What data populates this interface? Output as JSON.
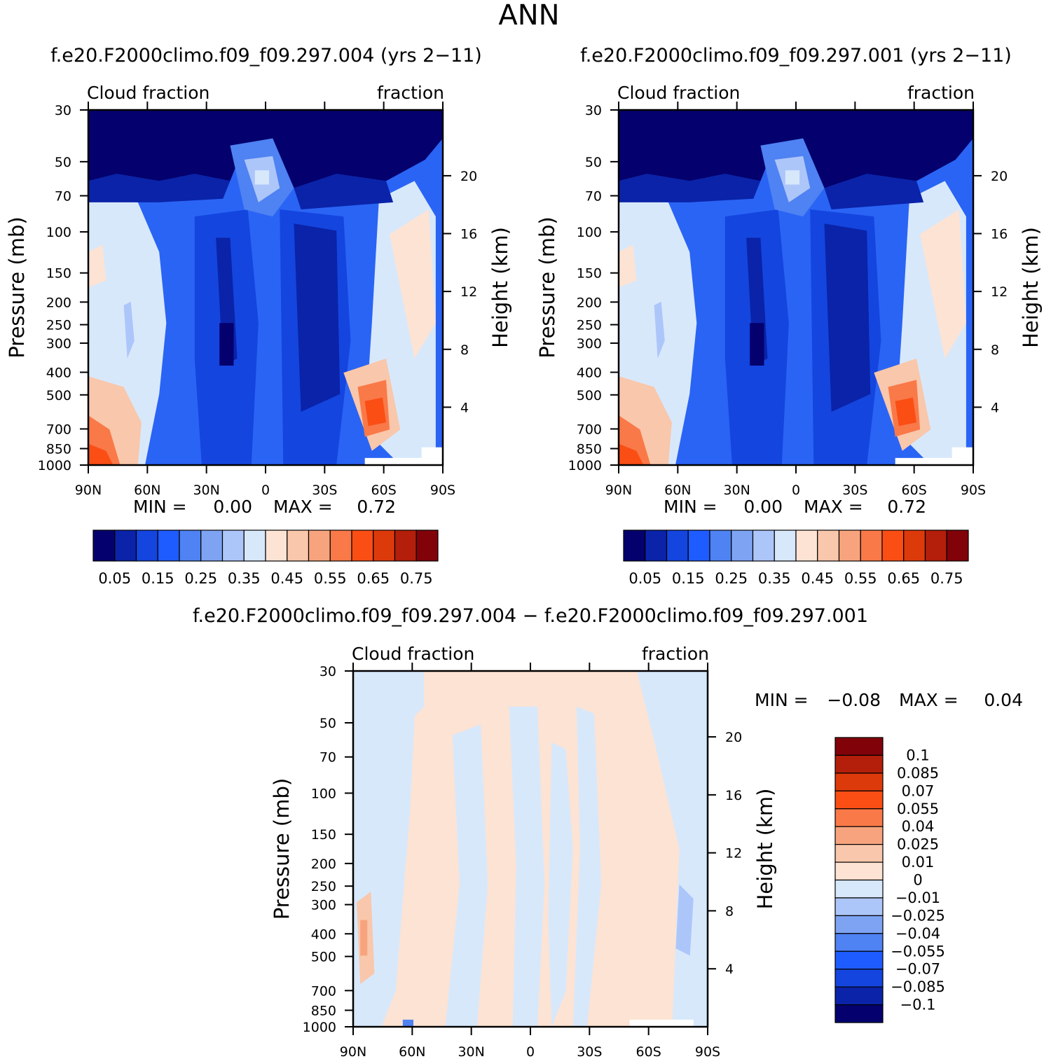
{
  "figure": {
    "season": "ANN",
    "min_label": "MIN  =",
    "max_label": "MAX  ="
  },
  "chart_data": [
    {
      "type": "heatmap",
      "id": "panel1",
      "case_title": "f.e20.F2000climo.f09_f09.297.004 (yrs 2-11)",
      "left_string": "Cloud fraction",
      "right_string": "fraction",
      "ylabel": "Pressure (mb)",
      "ylabel2": "Height (km)",
      "x_ticks": [
        "90N",
        "60N",
        "30N",
        "0",
        "30S",
        "60S",
        "90S"
      ],
      "x_range_lat": [
        90,
        -90
      ],
      "p_ticks": [
        "30",
        "50",
        "70",
        "100",
        "150",
        "200",
        "250",
        "300",
        "400",
        "500",
        "700",
        "850",
        "1000"
      ],
      "p_range": [
        30,
        1000
      ],
      "h_ticks": [
        "20",
        "16",
        "12",
        "8",
        "4"
      ],
      "min": "0.00",
      "max": "0.72",
      "colorbar_colors": [
        "#04006d",
        "#0a23a8",
        "#1445df",
        "#1f5cff",
        "#4f82f2",
        "#7fa3f3",
        "#adc6fa",
        "#d8e8fb",
        "#fde3d3",
        "#f9c7ab",
        "#f7a47e",
        "#f97948",
        "#fa4e15",
        "#dd3a0c",
        "#b31f0a",
        "#82020a"
      ],
      "colorbar_labels": [
        "0.05",
        "0.15",
        "0.25",
        "0.35",
        "0.45",
        "0.55",
        "0.65",
        "0.75"
      ]
    },
    {
      "type": "heatmap",
      "id": "panel2",
      "case_title": "f.e20.F2000climo.f09_f09.297.001 (yrs 2-11)",
      "left_string": "Cloud fraction",
      "right_string": "fraction",
      "ylabel": "Pressure (mb)",
      "ylabel2": "Height (km)",
      "x_ticks": [
        "90N",
        "60N",
        "30N",
        "0",
        "30S",
        "60S",
        "90S"
      ],
      "x_range_lat": [
        90,
        -90
      ],
      "p_ticks": [
        "30",
        "50",
        "70",
        "100",
        "150",
        "200",
        "250",
        "300",
        "400",
        "500",
        "700",
        "850",
        "1000"
      ],
      "p_range": [
        30,
        1000
      ],
      "h_ticks": [
        "20",
        "16",
        "12",
        "8",
        "4"
      ],
      "min": "0.00",
      "max": "0.72",
      "colorbar_colors": [
        "#04006d",
        "#0a23a8",
        "#1445df",
        "#1f5cff",
        "#4f82f2",
        "#7fa3f3",
        "#adc6fa",
        "#d8e8fb",
        "#fde3d3",
        "#f9c7ab",
        "#f7a47e",
        "#f97948",
        "#fa4e15",
        "#dd3a0c",
        "#b31f0a",
        "#82020a"
      ],
      "colorbar_labels": [
        "0.05",
        "0.15",
        "0.25",
        "0.35",
        "0.45",
        "0.55",
        "0.65",
        "0.75"
      ]
    },
    {
      "type": "heatmap",
      "id": "panel3",
      "case_title": "f.e20.F2000climo.f09_f09.297.004 - f.e20.F2000climo.f09_f09.297.001",
      "left_string": "Cloud fraction",
      "right_string": "fraction",
      "ylabel": "Pressure (mb)",
      "ylabel2": "Height (km)",
      "x_ticks": [
        "90N",
        "60N",
        "30N",
        "0",
        "30S",
        "60S",
        "90S"
      ],
      "x_range_lat": [
        90,
        -90
      ],
      "p_ticks": [
        "30",
        "50",
        "70",
        "100",
        "150",
        "200",
        "250",
        "300",
        "400",
        "500",
        "700",
        "850",
        "1000"
      ],
      "p_range": [
        30,
        1000
      ],
      "h_ticks": [
        "20",
        "16",
        "12",
        "8",
        "4"
      ],
      "min": "-0.08",
      "max": "0.04",
      "colorbar_colors": [
        "#04006d",
        "#0a23a8",
        "#1445df",
        "#1f5cff",
        "#4f82f2",
        "#7fa3f3",
        "#adc6fa",
        "#d8e8fb",
        "#fde3d3",
        "#f9c7ab",
        "#f7a47e",
        "#f97948",
        "#fa4e15",
        "#dd3a0c",
        "#b31f0a",
        "#82020a"
      ],
      "colorbar_labels": [
        "0.1",
        "0.085",
        "0.07",
        "0.055",
        "0.04",
        "0.025",
        "0.01",
        "0",
        "-0.01",
        "-0.025",
        "-0.04",
        "-0.055",
        "-0.07",
        "-0.085",
        "-0.1"
      ]
    }
  ]
}
